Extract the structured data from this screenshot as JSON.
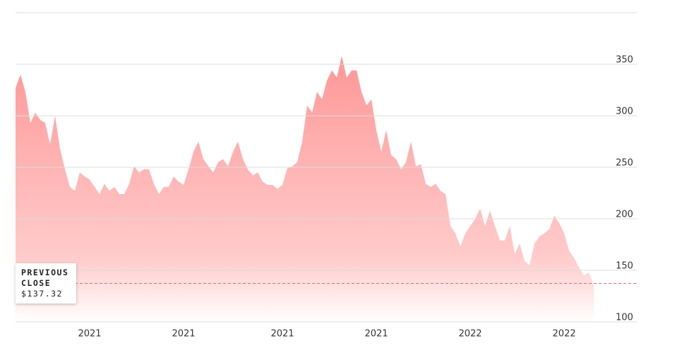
{
  "chart_data": {
    "type": "area",
    "color": "#ff9696",
    "values": [
      327,
      340,
      323,
      293,
      303,
      296,
      293,
      272,
      300,
      268,
      248,
      231,
      227,
      245,
      241,
      238,
      231,
      224,
      234,
      227,
      231,
      224,
      224,
      234,
      251,
      245,
      248,
      248,
      234,
      224,
      231,
      231,
      241,
      236,
      233,
      248,
      265,
      275,
      258,
      251,
      245,
      255,
      258,
      251,
      265,
      275,
      258,
      248,
      242,
      245,
      236,
      233,
      233,
      229,
      233,
      249,
      251,
      255,
      275,
      310,
      303,
      323,
      316,
      334,
      344,
      337,
      358,
      337,
      344,
      344,
      323,
      310,
      316,
      286,
      265,
      286,
      262,
      258,
      248,
      255,
      275,
      251,
      253,
      234,
      231,
      234,
      227,
      224,
      193,
      186,
      173,
      186,
      193,
      200,
      210,
      193,
      208,
      193,
      179,
      179,
      193,
      166,
      176,
      159,
      155,
      176,
      183,
      186,
      190,
      203,
      196,
      186,
      169,
      162,
      153,
      145,
      148,
      135
    ],
    "xlim": [
      0,
      117
    ],
    "xticks": [
      {
        "value": 15,
        "label": "2021"
      },
      {
        "value": 34,
        "label": "2021"
      },
      {
        "value": 54,
        "label": "2021"
      },
      {
        "value": 73,
        "label": "2021"
      },
      {
        "value": 92,
        "label": "2022"
      },
      {
        "value": 111,
        "label": "2022"
      }
    ],
    "ylim": [
      100,
      400
    ],
    "yticks": [
      100,
      150,
      200,
      250,
      300,
      350
    ],
    "grid": true,
    "previous_close": {
      "label": "PREVIOUS CLOSE",
      "value_label": "$137.32",
      "value": 137.32
    }
  }
}
